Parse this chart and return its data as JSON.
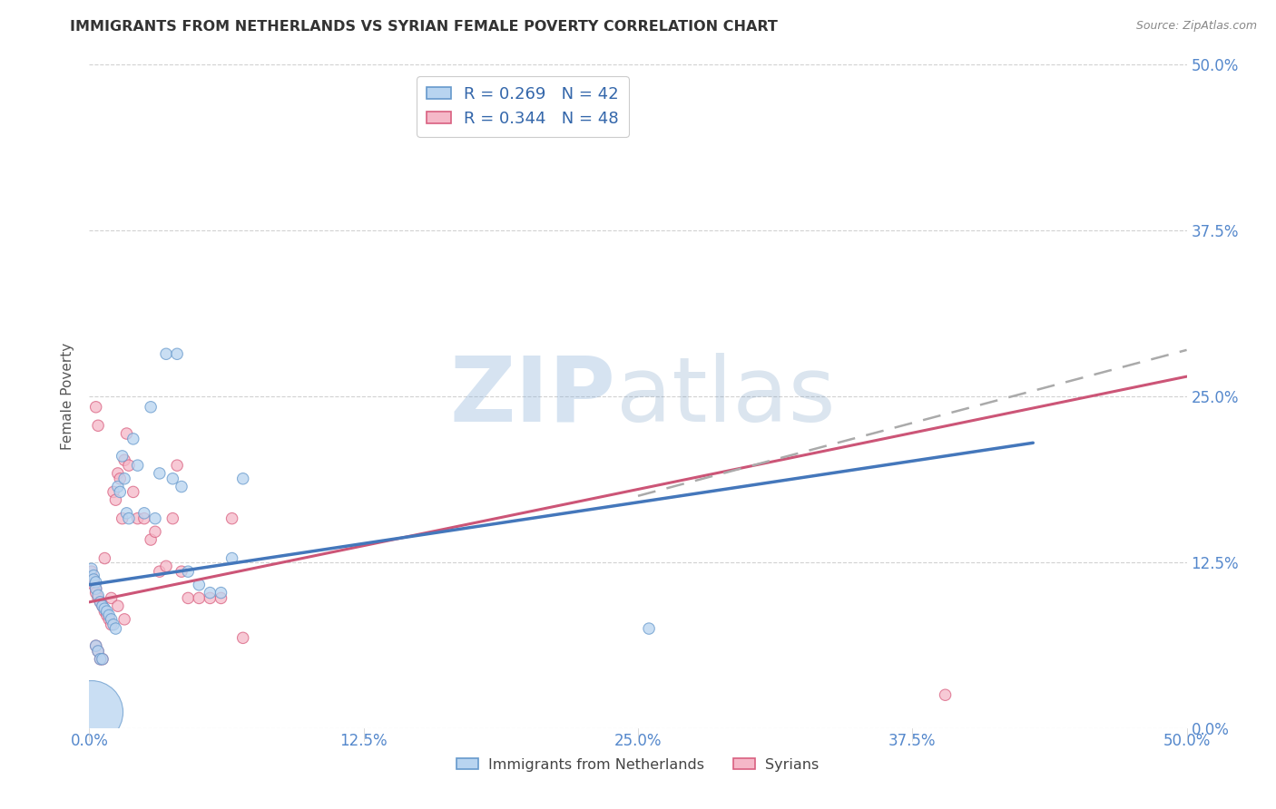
{
  "title": "IMMIGRANTS FROM NETHERLANDS VS SYRIAN FEMALE POVERTY CORRELATION CHART",
  "source": "Source: ZipAtlas.com",
  "ylabel": "Female Poverty",
  "xlim": [
    0.0,
    0.5
  ],
  "ylim": [
    0.0,
    0.5
  ],
  "xtick_vals": [
    0.0,
    0.125,
    0.25,
    0.375,
    0.5
  ],
  "xtick_labels": [
    "0.0%",
    "12.5%",
    "25.0%",
    "37.5%",
    "50.0%"
  ],
  "ytick_vals": [
    0.0,
    0.125,
    0.25,
    0.375,
    0.5
  ],
  "ytick_labels_right": [
    "0.0%",
    "12.5%",
    "25.0%",
    "37.5%",
    "50.0%"
  ],
  "blue_fill": "#b8d4f0",
  "blue_edge": "#6699cc",
  "pink_fill": "#f5b8c8",
  "pink_edge": "#d96080",
  "blue_line_color": "#4477bb",
  "pink_line_color": "#cc5577",
  "dashed_line_color": "#aaaaaa",
  "legend_R_blue": "0.269",
  "legend_N_blue": "42",
  "legend_R_pink": "0.344",
  "legend_N_pink": "48",
  "blue_line_x0": 0.0,
  "blue_line_y0": 0.108,
  "blue_line_x1": 0.43,
  "blue_line_y1": 0.215,
  "pink_line_x0": 0.0,
  "pink_line_y0": 0.095,
  "pink_line_x1": 0.5,
  "pink_line_y1": 0.265,
  "dashed_line_x0": 0.25,
  "dashed_line_y0": 0.175,
  "dashed_line_x1": 0.5,
  "dashed_line_y1": 0.285,
  "blue_scatter_x": [
    0.001,
    0.002,
    0.002,
    0.003,
    0.003,
    0.004,
    0.005,
    0.006,
    0.007,
    0.008,
    0.009,
    0.01,
    0.011,
    0.012,
    0.013,
    0.014,
    0.015,
    0.016,
    0.017,
    0.018,
    0.02,
    0.022,
    0.025,
    0.028,
    0.03,
    0.032,
    0.035,
    0.038,
    0.04,
    0.042,
    0.045,
    0.05,
    0.055,
    0.06,
    0.065,
    0.07,
    0.003,
    0.004,
    0.005,
    0.006,
    0.255,
    0.001
  ],
  "blue_scatter_y": [
    0.12,
    0.115,
    0.112,
    0.11,
    0.105,
    0.1,
    0.095,
    0.092,
    0.09,
    0.088,
    0.085,
    0.082,
    0.078,
    0.075,
    0.182,
    0.178,
    0.205,
    0.188,
    0.162,
    0.158,
    0.218,
    0.198,
    0.162,
    0.242,
    0.158,
    0.192,
    0.282,
    0.188,
    0.282,
    0.182,
    0.118,
    0.108,
    0.102,
    0.102,
    0.128,
    0.188,
    0.062,
    0.058,
    0.052,
    0.052,
    0.075,
    0.012
  ],
  "blue_scatter_sizes": [
    80,
    80,
    80,
    80,
    80,
    80,
    80,
    80,
    80,
    80,
    80,
    80,
    80,
    80,
    80,
    80,
    80,
    80,
    80,
    80,
    80,
    80,
    80,
    80,
    80,
    80,
    80,
    80,
    80,
    80,
    80,
    80,
    80,
    80,
    80,
    80,
    80,
    80,
    80,
    80,
    80,
    2500
  ],
  "pink_scatter_x": [
    0.001,
    0.002,
    0.002,
    0.003,
    0.003,
    0.004,
    0.005,
    0.006,
    0.007,
    0.008,
    0.009,
    0.01,
    0.011,
    0.012,
    0.013,
    0.014,
    0.015,
    0.016,
    0.017,
    0.018,
    0.02,
    0.022,
    0.025,
    0.028,
    0.03,
    0.032,
    0.035,
    0.038,
    0.04,
    0.042,
    0.045,
    0.05,
    0.055,
    0.06,
    0.065,
    0.07,
    0.003,
    0.004,
    0.005,
    0.006,
    0.39,
    0.17,
    0.003,
    0.004,
    0.007,
    0.01,
    0.013,
    0.016
  ],
  "pink_scatter_y": [
    0.118,
    0.112,
    0.108,
    0.105,
    0.102,
    0.098,
    0.095,
    0.092,
    0.088,
    0.085,
    0.082,
    0.078,
    0.178,
    0.172,
    0.192,
    0.188,
    0.158,
    0.202,
    0.222,
    0.198,
    0.178,
    0.158,
    0.158,
    0.142,
    0.148,
    0.118,
    0.122,
    0.158,
    0.198,
    0.118,
    0.098,
    0.098,
    0.098,
    0.098,
    0.158,
    0.068,
    0.062,
    0.058,
    0.052,
    0.052,
    0.025,
    0.452,
    0.242,
    0.228,
    0.128,
    0.098,
    0.092,
    0.082
  ],
  "pink_scatter_sizes": [
    80,
    80,
    80,
    80,
    80,
    80,
    80,
    80,
    80,
    80,
    80,
    80,
    80,
    80,
    80,
    80,
    80,
    80,
    80,
    80,
    80,
    80,
    80,
    80,
    80,
    80,
    80,
    80,
    80,
    80,
    80,
    80,
    80,
    80,
    80,
    80,
    80,
    80,
    80,
    80,
    80,
    80,
    80,
    80,
    80,
    80,
    80,
    80
  ]
}
